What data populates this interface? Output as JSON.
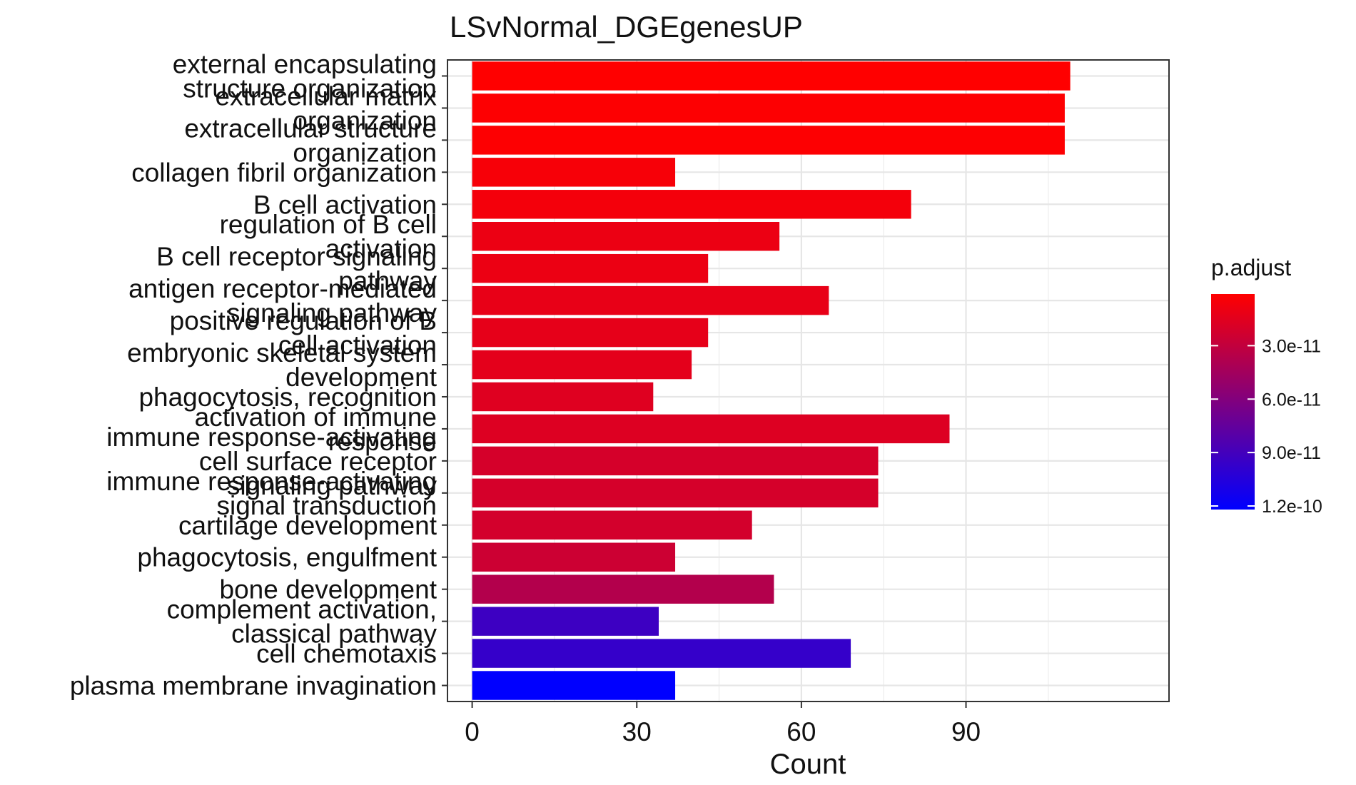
{
  "chart_data": {
    "type": "bar",
    "orientation": "horizontal",
    "title": "LSvNormal_DGEgenesUP",
    "xlabel": "Count",
    "ylabel": "",
    "xlim": [
      -4.5,
      127
    ],
    "x_ticks": [
      0,
      30,
      60,
      90
    ],
    "grid": true,
    "legend_position": "right",
    "categories": [
      "external encapsulating structure organization",
      "extracellular matrix organization",
      "extracellular structure organization",
      "collagen fibril organization",
      "B cell activation",
      "regulation of B cell activation",
      "B cell receptor signaling pathway",
      "antigen receptor-mediated signaling pathway",
      "positive regulation of B cell activation",
      "embryonic skeletal system development",
      "phagocytosis, recognition",
      "activation of immune response",
      "immune response-activating cell surface receptor signaling pathway",
      "immune response-activating signal transduction",
      "cartilage development",
      "phagocytosis, engulfment",
      "bone development",
      "complement activation, classical pathway",
      "cell chemotaxis",
      "plasma membrane invagination"
    ],
    "values": [
      109,
      108,
      108,
      37,
      80,
      56,
      43,
      65,
      43,
      40,
      33,
      87,
      74,
      74,
      51,
      37,
      55,
      34,
      69,
      37
    ],
    "p_adjust": [
      1e-12,
      2e-12,
      2e-12,
      5e-12,
      6e-12,
      1e-11,
      1e-11,
      1.2e-11,
      1.3e-11,
      1.4e-11,
      1.6e-11,
      1.7e-11,
      2.1e-11,
      2.1e-11,
      2.2e-11,
      2.5e-11,
      3.7e-11,
      9.3e-11,
      9.7e-11,
      1.22e-10
    ],
    "legend": {
      "title": "p.adjust",
      "type": "colorbar",
      "range": [
        1e-12,
        1.22e-10
      ],
      "ticks": [
        3e-11,
        6e-11,
        9e-11,
        1.2e-10
      ],
      "tick_labels": [
        "3.0e-11",
        "6.0e-11",
        "9.0e-11",
        "1.2e-10"
      ],
      "color_low": "#ff0000",
      "color_high": "#0000ff"
    }
  }
}
